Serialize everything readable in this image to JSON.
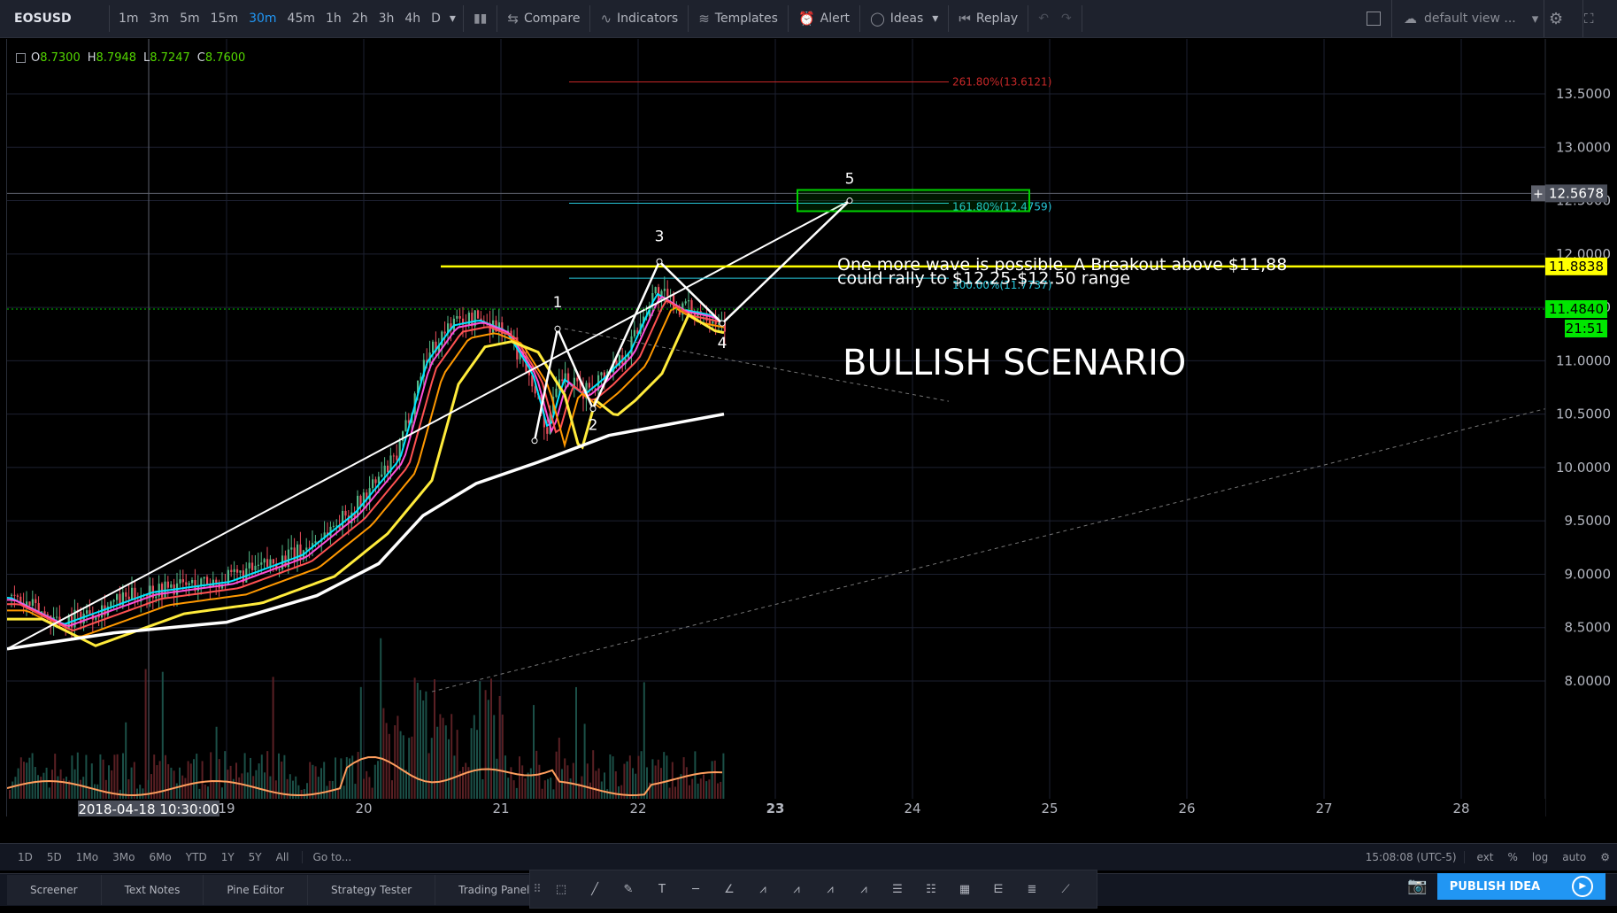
{
  "symbol": "EOSUSD",
  "intervals": [
    "1m",
    "3m",
    "5m",
    "15m",
    "30m",
    "45m",
    "1h",
    "2h",
    "3h",
    "4h",
    "D"
  ],
  "active_interval": "30m",
  "toolbar": {
    "compare": "Compare",
    "indicators": "Indicators",
    "templates": "Templates",
    "alert": "Alert",
    "ideas": "Ideas",
    "replay": "Replay",
    "default_view": "default view ..."
  },
  "ohlc": {
    "o_label": "O",
    "o": "8.7300",
    "h_label": "H",
    "h": "8.7948",
    "l_label": "L",
    "l": "8.7247",
    "c_label": "C",
    "c": "8.7600"
  },
  "price_axis": [
    "13.5000",
    "13.0000",
    "12.5000",
    "12.0000",
    "11.5000",
    "11.0000",
    "10.5000",
    "10.0000",
    "9.5000",
    "9.0000",
    "8.5000",
    "8.0000"
  ],
  "price_tags": {
    "crosshair": "12.5678",
    "resistance": "11.8838",
    "last": "11.4840",
    "countdown": "21:51"
  },
  "time_axis": [
    "19",
    "20",
    "21",
    "22",
    "23",
    "24",
    "25",
    "26",
    "27",
    "28"
  ],
  "crosshair_time": "2018-04-18 10:30:00",
  "fib_labels": {
    "f261": "261.80%(13.6121)",
    "f161": "161.80%(12.4759)",
    "f100": "100.00%(11.7737)"
  },
  "wave_labels": [
    "1",
    "2",
    "3",
    "4",
    "5"
  ],
  "annotation": {
    "line1": "One more wave is possible. A Breakout above $11,88",
    "line2": "could rally to $12.25-$12.50 range",
    "scenario": "BULLISH SCENARIO"
  },
  "ranges": [
    "1D",
    "5D",
    "1Mo",
    "3Mo",
    "6Mo",
    "YTD",
    "1Y",
    "5Y",
    "All"
  ],
  "goto": "Go to...",
  "clock": "15:08:08 (UTC-5)",
  "axis_opts": [
    "ext",
    "%",
    "log",
    "auto"
  ],
  "tabs": [
    "Screener",
    "Text Notes",
    "Pine Editor",
    "Strategy Tester",
    "Trading Panel"
  ],
  "publish": "PUBLISH IDEA",
  "colors": {
    "bg": "#000000",
    "grid": "#1c2030",
    "up": "#26a69a",
    "down": "#ef5350",
    "yellow": "#ffff00",
    "green_tag": "#00e600",
    "accent": "#2196f3",
    "fib_red": "#c62828",
    "fib_cyan": "#26c6da"
  }
}
